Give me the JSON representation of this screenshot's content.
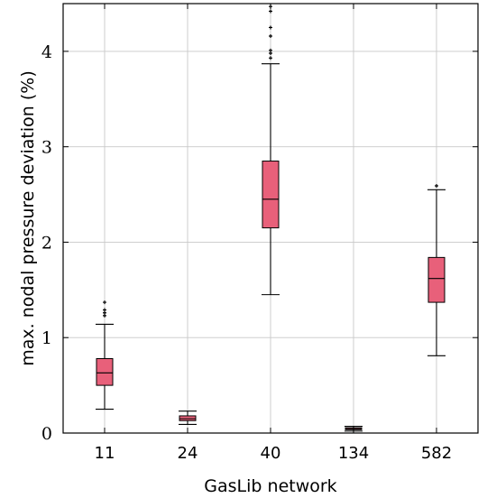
{
  "chart_data": {
    "type": "box",
    "xlabel": "GasLib network",
    "ylabel": "max. nodal pressure deviation (%)",
    "ylim": [
      0,
      4.5
    ],
    "yticks": [
      "0",
      "1",
      "2",
      "3",
      "4"
    ],
    "grid": true,
    "colors": {
      "box": "#e8607a",
      "grid": "#c8c8c8",
      "axis": "#000000"
    },
    "boxes": [
      {
        "category": "11",
        "whisker_low": 0.25,
        "q1": 0.5,
        "median": 0.63,
        "q3": 0.78,
        "whisker_high": 1.14,
        "outliers": [
          1.23,
          1.26,
          1.29,
          1.37
        ]
      },
      {
        "category": "24",
        "whisker_low": 0.09,
        "q1": 0.13,
        "median": 0.15,
        "q3": 0.18,
        "whisker_high": 0.23,
        "outliers": []
      },
      {
        "category": "40",
        "whisker_low": 1.45,
        "q1": 2.15,
        "median": 2.45,
        "q3": 2.85,
        "whisker_high": 3.87,
        "outliers": [
          3.93,
          3.98,
          4.01,
          4.16,
          4.25,
          4.42,
          4.47
        ]
      },
      {
        "category": "134",
        "whisker_low": 0.02,
        "q1": 0.035,
        "median": 0.045,
        "q3": 0.055,
        "whisker_high": 0.07,
        "outliers": []
      },
      {
        "category": "582",
        "whisker_low": 0.81,
        "q1": 1.37,
        "median": 1.62,
        "q3": 1.84,
        "whisker_high": 2.55,
        "outliers": [
          2.59
        ]
      }
    ]
  }
}
